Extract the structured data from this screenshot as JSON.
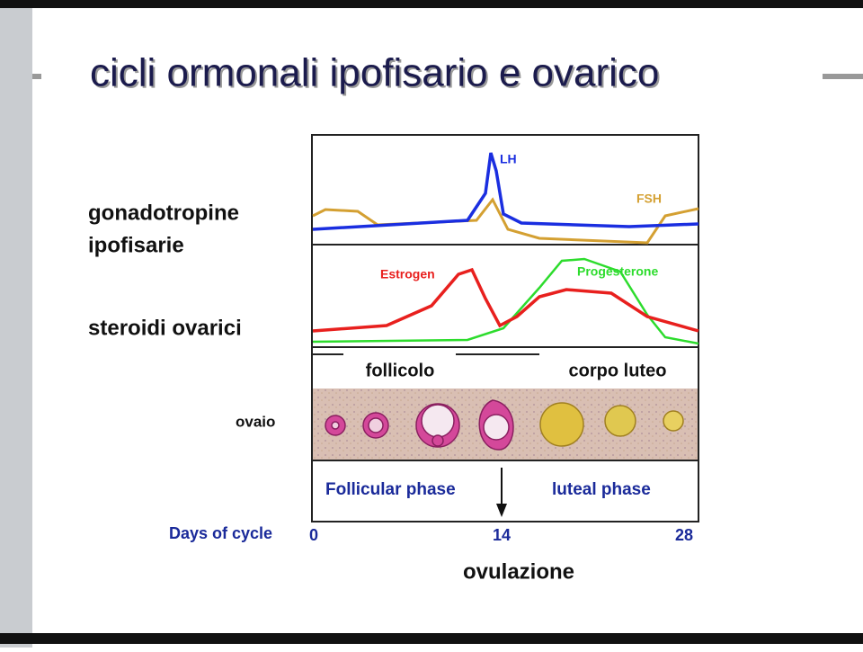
{
  "title": "cicli ormonali ipofisario e ovarico",
  "side_labels": {
    "gonadotropins": [
      "gonadotropine",
      "ipofisarie"
    ],
    "steroids": "steroidi ovarici",
    "ovary": "ovaio"
  },
  "diagram": {
    "curve_labels": {
      "lh": "LH",
      "fsh": "FSH",
      "estrogen": "Estrogen",
      "progesterone": "Progesterone"
    },
    "stages": [
      "follicolo",
      "corpo luteo"
    ],
    "phases": [
      "Follicular phase",
      "luteal phase"
    ],
    "axis_label": "Days of cycle",
    "days": [
      "0",
      "14",
      "28"
    ]
  },
  "ovulation": "ovulazione"
}
